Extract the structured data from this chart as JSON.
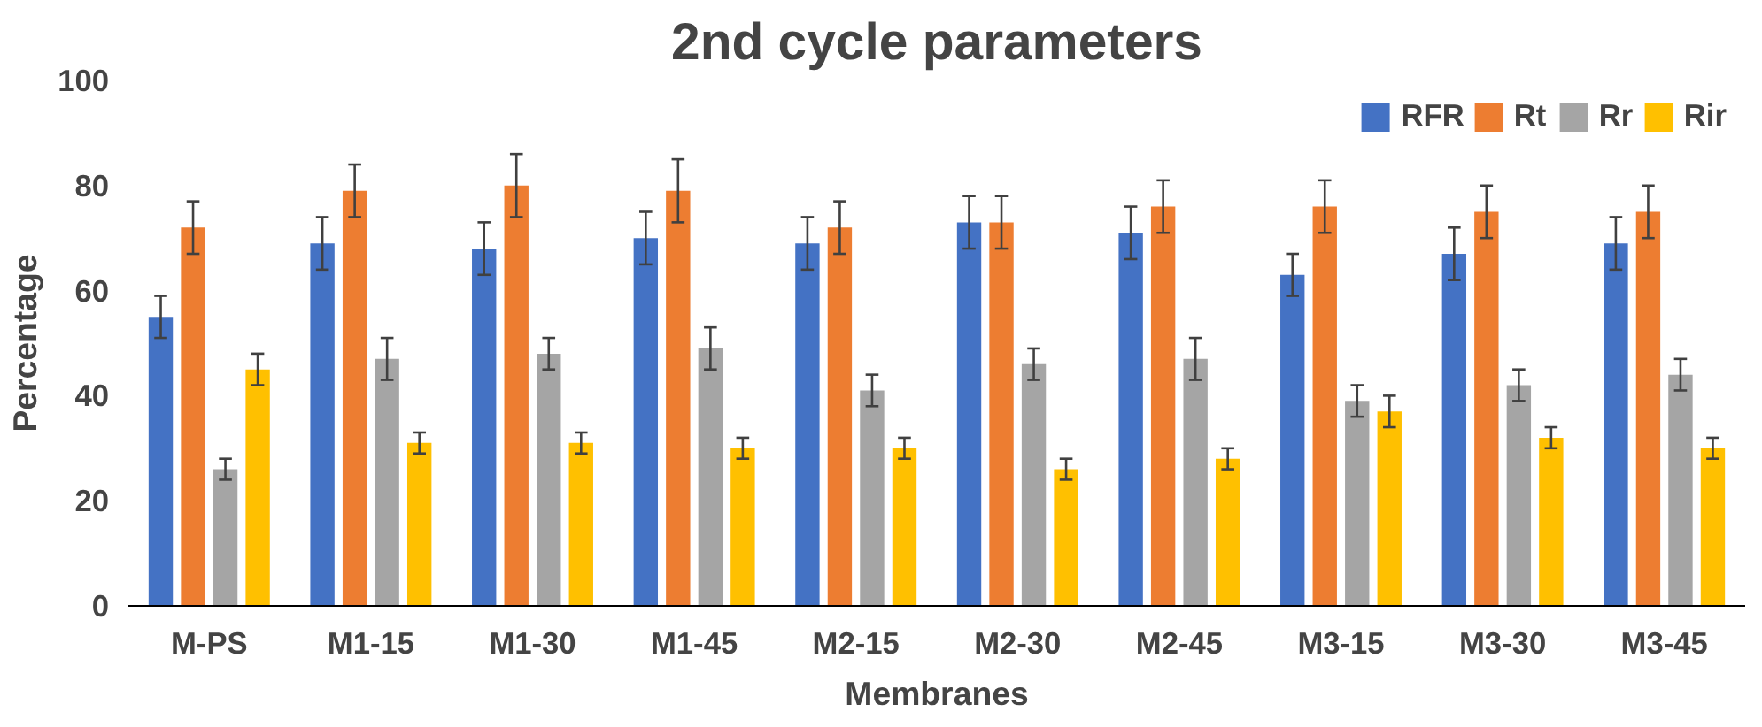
{
  "chart_data": {
    "type": "bar",
    "title": "2nd cycle parameters",
    "xlabel": "Membranes",
    "ylabel": "Percentage",
    "categories": [
      "M-PS",
      "M1-15",
      "M1-30",
      "M1-45",
      "M2-15",
      "M2-30",
      "M2-45",
      "M3-15",
      "M3-30",
      "M3-45"
    ],
    "series": [
      {
        "name": "RFR",
        "color": "#4472c4",
        "values": [
          55,
          69,
          68,
          70,
          69,
          73,
          71,
          63,
          67,
          69
        ],
        "errors": [
          4,
          5,
          5,
          5,
          5,
          5,
          5,
          4,
          5,
          5
        ]
      },
      {
        "name": "Rt",
        "color": "#ed7d31",
        "values": [
          72,
          79,
          80,
          79,
          72,
          73,
          76,
          76,
          75,
          75
        ],
        "errors": [
          5,
          5,
          6,
          6,
          5,
          5,
          5,
          5,
          5,
          5
        ]
      },
      {
        "name": "Rr",
        "color": "#a5a5a5",
        "values": [
          26,
          47,
          48,
          49,
          41,
          46,
          47,
          39,
          42,
          44
        ],
        "errors": [
          2,
          4,
          3,
          4,
          3,
          3,
          4,
          3,
          3,
          3
        ]
      },
      {
        "name": "Rir",
        "color": "#ffc000",
        "values": [
          45,
          31,
          31,
          30,
          30,
          26,
          28,
          37,
          32,
          30
        ],
        "errors": [
          3,
          2,
          2,
          2,
          2,
          2,
          2,
          3,
          2,
          2
        ]
      }
    ],
    "ylim": [
      0,
      100
    ],
    "yticks": [
      0,
      20,
      40,
      60,
      80,
      100
    ],
    "grid": false,
    "legend": "top right"
  }
}
